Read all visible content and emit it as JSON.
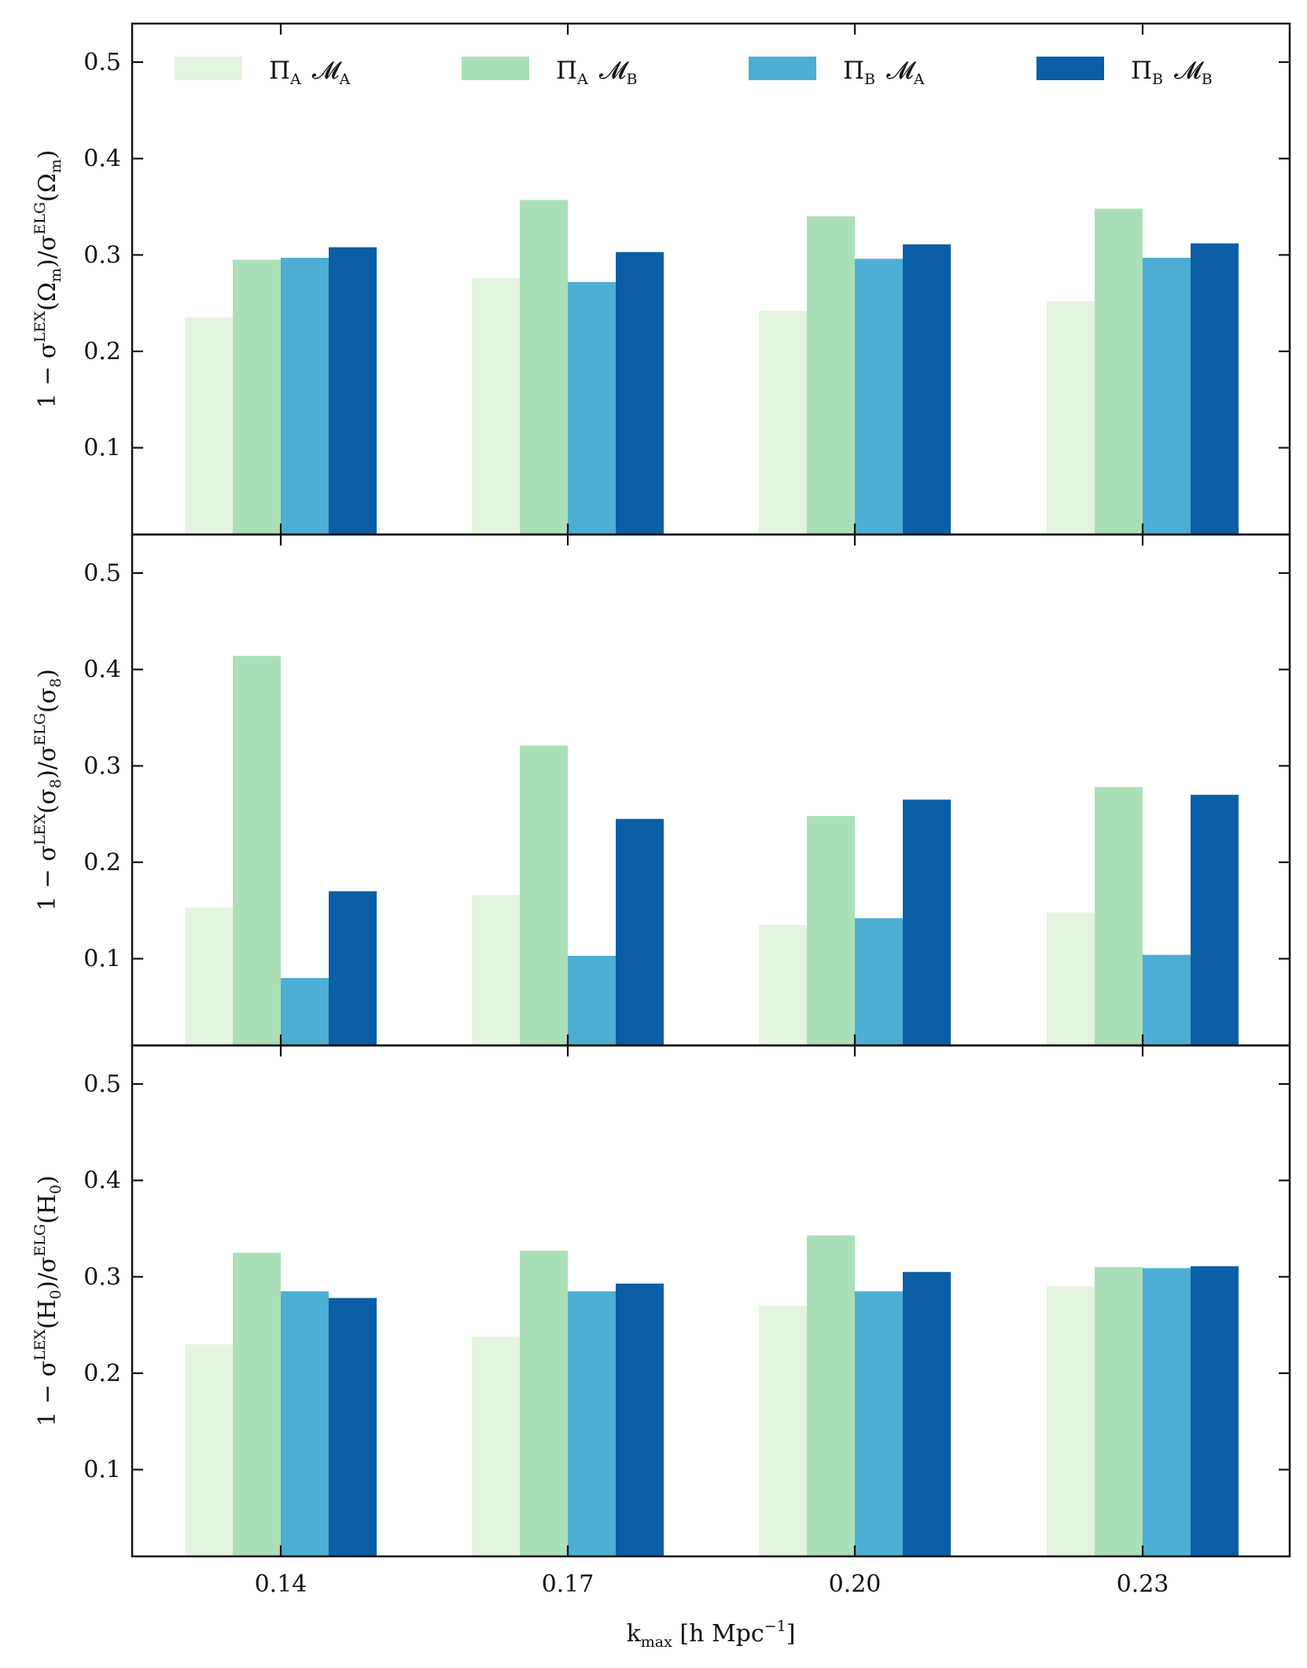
{
  "chart_data": {
    "type": "bar",
    "layout": "3 vertically stacked panels sharing x axis",
    "categories": [
      "0.14",
      "0.17",
      "0.20",
      "0.23"
    ],
    "xlabel": {
      "main": "k",
      "sub": "max",
      "rest": " [h Mpc",
      "sup": "−1",
      "end": "]"
    },
    "ylim": [
      0.01,
      0.54
    ],
    "yticks": [
      "0.1",
      "0.2",
      "0.3",
      "0.4",
      "0.5"
    ],
    "legend": {
      "placement": "top of first panel, 4 columns",
      "entries": [
        {
          "key": "PiA_MA",
          "pi_sub": "A",
          "m_sub": "A",
          "color": "#e4f4e0"
        },
        {
          "key": "PiA_MB",
          "pi_sub": "A",
          "m_sub": "B",
          "color": "#aadfb8"
        },
        {
          "key": "PiB_MA",
          "pi_sub": "B",
          "m_sub": "A",
          "color": "#4daed3"
        },
        {
          "key": "PiB_MB",
          "pi_sub": "B",
          "m_sub": "B",
          "color": "#0a5fa6"
        }
      ]
    },
    "panels": [
      {
        "param": "Ω",
        "param_sub": "m",
        "ylabel": "1 − σ^LEX(Ω_m)/σ^ELG(Ω_m)",
        "series": [
          {
            "name": "ΠA MA",
            "values": [
              0.235,
              0.276,
              0.242,
              0.252
            ]
          },
          {
            "name": "ΠA MB",
            "values": [
              0.295,
              0.357,
              0.34,
              0.348
            ]
          },
          {
            "name": "ΠB MA",
            "values": [
              0.297,
              0.272,
              0.296,
              0.297
            ]
          },
          {
            "name": "ΠB MB",
            "values": [
              0.308,
              0.303,
              0.311,
              0.312
            ]
          }
        ]
      },
      {
        "param": "σ",
        "param_sub": "8",
        "ylabel": "1 − σ^LEX(σ_8)/σ^ELG(σ_8)",
        "series": [
          {
            "name": "ΠA MA",
            "values": [
              0.153,
              0.166,
              0.135,
              0.148
            ]
          },
          {
            "name": "ΠA MB",
            "values": [
              0.414,
              0.321,
              0.248,
              0.278
            ]
          },
          {
            "name": "ΠB MA",
            "values": [
              0.08,
              0.103,
              0.142,
              0.104
            ]
          },
          {
            "name": "ΠB MB",
            "values": [
              0.17,
              0.245,
              0.265,
              0.27
            ]
          }
        ]
      },
      {
        "param": "H",
        "param_sub": "0",
        "ylabel": "1 − σ^LEX(H_0)/σ^ELG(H_0)",
        "series": [
          {
            "name": "ΠA MA",
            "values": [
              0.23,
              0.238,
              0.27,
              0.29
            ]
          },
          {
            "name": "ΠA MB",
            "values": [
              0.325,
              0.327,
              0.343,
              0.31
            ]
          },
          {
            "name": "ΠB MA",
            "values": [
              0.285,
              0.285,
              0.285,
              0.309
            ]
          },
          {
            "name": "ΠB MB",
            "values": [
              0.278,
              0.293,
              0.305,
              0.311
            ]
          }
        ]
      }
    ]
  }
}
